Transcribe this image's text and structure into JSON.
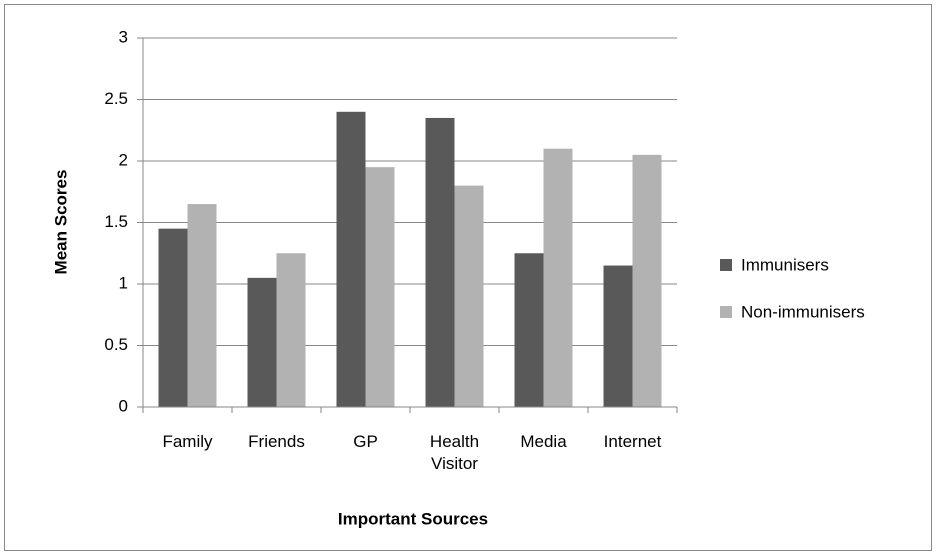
{
  "chart_data": {
    "type": "bar",
    "x_label": "Important Sources",
    "y_label": "Mean Scores",
    "categories": [
      "Family",
      "Friends",
      "GP",
      "Health Visitor",
      "Media",
      "Internet"
    ],
    "series": [
      {
        "name": "Immunisers",
        "color": "#595959",
        "values": [
          1.45,
          1.05,
          2.4,
          2.35,
          1.25,
          1.15
        ]
      },
      {
        "name": "Non-immunisers",
        "color": "#b2b2b2",
        "values": [
          1.65,
          1.25,
          1.95,
          1.8,
          2.1,
          2.05
        ]
      }
    ],
    "ylim": [
      0,
      3
    ],
    "yticks": [
      0,
      0.5,
      1,
      1.5,
      2,
      2.5,
      3
    ],
    "grid": true,
    "legend": "right"
  }
}
